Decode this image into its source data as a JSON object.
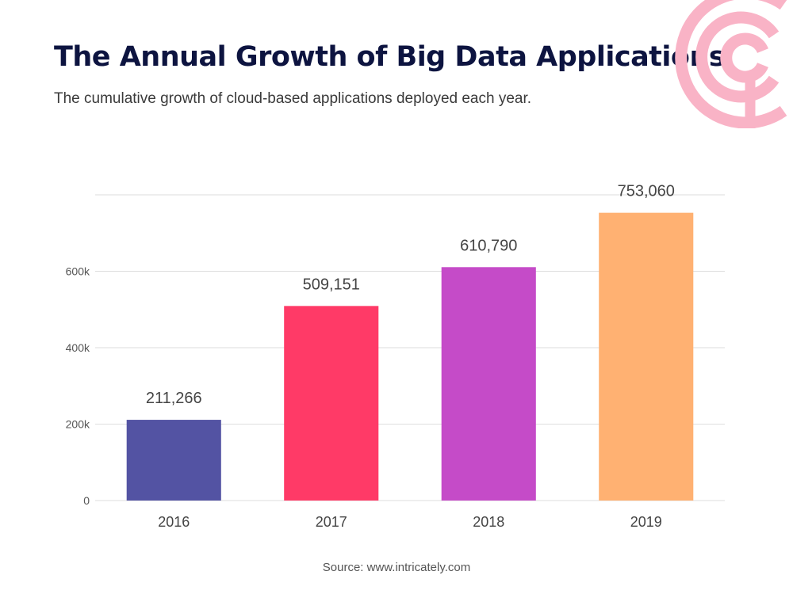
{
  "header": {
    "title": "The Annual Growth of Big Data Applications",
    "subtitle": "The cumulative growth of cloud-based applications deployed each year."
  },
  "footer": {
    "source": "Source: www.intricately.com"
  },
  "logo": {
    "icon": "concentric-rings-logo-icon",
    "color": "#f9b3c6"
  },
  "chart_data": {
    "type": "bar",
    "title": "The Annual Growth of Big Data Applications",
    "subtitle": "The cumulative growth of cloud-based applications deployed each year.",
    "xlabel": "",
    "ylabel": "",
    "categories": [
      "2016",
      "2017",
      "2018",
      "2019"
    ],
    "values": [
      211266,
      509151,
      610790,
      753060
    ],
    "data_labels": [
      "211,266",
      "509,151",
      "610,790",
      "753,060"
    ],
    "colors": [
      "#5353a3",
      "#ff3a67",
      "#c54bc8",
      "#ffb172"
    ],
    "ylim": [
      0,
      800000
    ],
    "yticks": [
      0,
      200000,
      400000,
      600000
    ],
    "ytick_labels": [
      "0",
      "200k",
      "400k",
      "600k"
    ],
    "grid": true,
    "legend": "none"
  }
}
